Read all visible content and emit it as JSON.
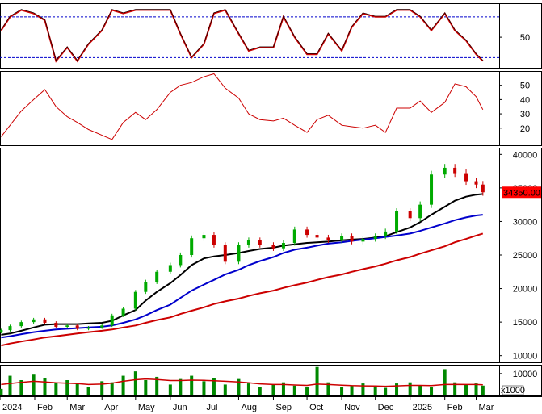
{
  "chart_data": [
    {
      "name": "stochastic-oscillator-panel",
      "type": "line",
      "y_ticks": [
        "50"
      ],
      "reference_lines": [
        20,
        80
      ],
      "line_color": "#cc0000",
      "signal_color": "#000000",
      "reference_color": "#0000cc",
      "x": [
        "2024-01-02",
        "2024-01-10",
        "2024-01-20",
        "2024-01-31",
        "2024-02-10",
        "2024-02-20",
        "2024-03-01",
        "2024-03-10",
        "2024-03-20",
        "2024-04-01",
        "2024-04-10",
        "2024-04-20",
        "2024-05-01",
        "2024-05-10",
        "2024-05-20",
        "2024-06-01",
        "2024-06-10",
        "2024-06-20",
        "2024-07-01",
        "2024-07-10",
        "2024-07-20",
        "2024-08-01",
        "2024-08-10",
        "2024-08-20",
        "2024-09-01",
        "2024-09-10",
        "2024-09-20",
        "2024-10-01",
        "2024-10-10",
        "2024-10-20",
        "2024-11-01",
        "2024-11-10",
        "2024-11-20",
        "2024-12-01",
        "2024-12-10",
        "2024-12-20",
        "2025-01-01",
        "2025-01-10",
        "2025-01-20",
        "2025-02-01",
        "2025-02-10",
        "2025-02-20",
        "2025-03-01",
        "2025-03-07"
      ],
      "values": [
        60,
        80,
        90,
        85,
        75,
        15,
        35,
        15,
        40,
        60,
        90,
        85,
        90,
        90,
        90,
        90,
        55,
        20,
        40,
        85,
        90,
        55,
        30,
        35,
        35,
        80,
        50,
        25,
        25,
        55,
        30,
        65,
        85,
        80,
        80,
        90,
        90,
        80,
        60,
        85,
        60,
        45,
        25,
        15
      ]
    },
    {
      "name": "rsi-panel",
      "type": "line",
      "y_ticks": [
        "50",
        "40",
        "30",
        "20"
      ],
      "line_color": "#cc0000",
      "x": [
        "2024-01-02",
        "2024-01-10",
        "2024-01-20",
        "2024-01-31",
        "2024-02-10",
        "2024-02-20",
        "2024-03-01",
        "2024-03-10",
        "2024-03-20",
        "2024-04-01",
        "2024-04-10",
        "2024-04-20",
        "2024-05-01",
        "2024-05-10",
        "2024-05-20",
        "2024-06-01",
        "2024-06-10",
        "2024-06-20",
        "2024-07-01",
        "2024-07-10",
        "2024-07-20",
        "2024-08-01",
        "2024-08-10",
        "2024-08-20",
        "2024-09-01",
        "2024-09-10",
        "2024-09-20",
        "2024-10-01",
        "2024-10-10",
        "2024-10-20",
        "2024-11-01",
        "2024-11-10",
        "2024-11-20",
        "2024-12-01",
        "2024-12-10",
        "2024-12-20",
        "2025-01-01",
        "2025-01-10",
        "2025-01-20",
        "2025-02-01",
        "2025-02-10",
        "2025-02-20",
        "2025-03-01",
        "2025-03-07"
      ],
      "values": [
        14,
        22,
        32,
        40,
        47,
        35,
        28,
        24,
        19,
        15,
        12,
        24,
        31,
        26,
        33,
        45,
        50,
        52,
        56,
        58,
        48,
        41,
        30,
        26,
        25,
        27,
        22,
        17,
        26,
        29,
        22,
        21,
        20,
        22,
        17,
        34,
        34,
        39,
        31,
        38,
        51,
        49,
        42,
        33
      ]
    },
    {
      "name": "price-panel",
      "type": "candlestick",
      "y_ticks": [
        "40000",
        "35000",
        "30000",
        "25000",
        "20000",
        "15000",
        "10000"
      ],
      "ylim": [
        9000,
        41000
      ],
      "last_price_label": "34350.00",
      "last_price_color": "#ff0000",
      "up_color": "#00aa00",
      "down_color": "#cc0000",
      "x": [
        "2024-01-02",
        "2024-01-10",
        "2024-01-20",
        "2024-01-31",
        "2024-02-10",
        "2024-02-20",
        "2024-03-01",
        "2024-03-10",
        "2024-03-20",
        "2024-04-01",
        "2024-04-10",
        "2024-04-20",
        "2024-05-01",
        "2024-05-10",
        "2024-05-20",
        "2024-06-01",
        "2024-06-10",
        "2024-06-20",
        "2024-07-01",
        "2024-07-10",
        "2024-07-20",
        "2024-08-01",
        "2024-08-10",
        "2024-08-20",
        "2024-09-01",
        "2024-09-10",
        "2024-09-20",
        "2024-10-01",
        "2024-10-10",
        "2024-10-20",
        "2024-11-01",
        "2024-11-10",
        "2024-11-20",
        "2024-12-01",
        "2024-12-10",
        "2024-12-20",
        "2025-01-01",
        "2025-01-10",
        "2025-01-20",
        "2025-02-01",
        "2025-02-10",
        "2025-02-20",
        "2025-03-01",
        "2025-03-07"
      ],
      "close": [
        13800,
        14400,
        15000,
        15400,
        14900,
        14300,
        14500,
        14000,
        14200,
        14500,
        16000,
        17000,
        19500,
        21000,
        22500,
        23500,
        25000,
        27500,
        28000,
        26500,
        24000,
        26500,
        27200,
        26500,
        26000,
        26800,
        28800,
        28000,
        27600,
        27200,
        27800,
        27000,
        27400,
        27800,
        28500,
        31500,
        30500,
        32500,
        37000,
        38000,
        37200,
        36000,
        35500,
        34350
      ],
      "series": [
        {
          "name": "MA20",
          "color": "#000000",
          "values": [
            13100,
            13300,
            13700,
            14200,
            14600,
            14700,
            14700,
            14700,
            14800,
            14900,
            15200,
            16000,
            16800,
            18200,
            19500,
            20800,
            22000,
            23500,
            24500,
            24800,
            25000,
            25300,
            25600,
            25900,
            26100,
            26400,
            26600,
            26800,
            26900,
            27000,
            27200,
            27300,
            27400,
            27600,
            27800,
            28400,
            29100,
            29900,
            31000,
            32200,
            33100,
            33700,
            34000,
            34100
          ]
        },
        {
          "name": "MA50",
          "color": "#0000cc",
          "values": [
            12700,
            12900,
            13200,
            13500,
            13700,
            13900,
            14000,
            14100,
            14200,
            14300,
            14500,
            14900,
            15400,
            16000,
            16800,
            17600,
            18600,
            19700,
            20600,
            21300,
            22100,
            22800,
            23500,
            24100,
            24700,
            25300,
            25800,
            26100,
            26400,
            26700,
            26900,
            27100,
            27300,
            27500,
            27700,
            27900,
            28200,
            28600,
            29100,
            29700,
            30200,
            30600,
            30900,
            31000
          ]
        },
        {
          "name": "MA200",
          "color": "#cc0000",
          "values": [
            11500,
            11800,
            12100,
            12400,
            12700,
            12900,
            13100,
            13300,
            13500,
            13700,
            13900,
            14200,
            14500,
            14900,
            15300,
            15700,
            16200,
            16700,
            17200,
            17700,
            18100,
            18500,
            18900,
            19300,
            19700,
            20100,
            20500,
            20900,
            21300,
            21700,
            22100,
            22500,
            22900,
            23300,
            23700,
            24200,
            24700,
            25200,
            25700,
            26300,
            26900,
            27400,
            27900,
            28200
          ]
        }
      ]
    },
    {
      "name": "volume-panel",
      "type": "bar",
      "y_ticks": [
        "10000"
      ],
      "unit_label": "x1000",
      "bar_color": "#008800",
      "ma_color": "#cc0000",
      "x": [
        "2024-01-02",
        "2024-01-10",
        "2024-01-20",
        "2024-01-31",
        "2024-02-10",
        "2024-02-20",
        "2024-03-01",
        "2024-03-10",
        "2024-03-20",
        "2024-04-01",
        "2024-04-10",
        "2024-04-20",
        "2024-05-01",
        "2024-05-10",
        "2024-05-20",
        "2024-06-01",
        "2024-06-10",
        "2024-06-20",
        "2024-07-01",
        "2024-07-10",
        "2024-07-20",
        "2024-08-01",
        "2024-08-10",
        "2024-08-20",
        "2024-09-01",
        "2024-09-10",
        "2024-09-20",
        "2024-10-01",
        "2024-10-10",
        "2024-10-20",
        "2024-11-01",
        "2024-11-10",
        "2024-11-20",
        "2024-12-01",
        "2024-12-10",
        "2024-12-20",
        "2025-01-01",
        "2025-01-10",
        "2025-01-20",
        "2025-02-01",
        "2025-02-10",
        "2025-02-20",
        "2025-03-01",
        "2025-03-07"
      ],
      "values": [
        3000,
        9000,
        7000,
        9500,
        8000,
        6000,
        7000,
        5500,
        4000,
        6500,
        6000,
        9000,
        11000,
        7000,
        8500,
        5000,
        7500,
        9000,
        6500,
        8000,
        5000,
        7500,
        5500,
        4000,
        5000,
        6000,
        4500,
        4000,
        13000,
        6000,
        4000,
        4500,
        5500,
        4000,
        3500,
        5500,
        6000,
        4500,
        4000,
        12000,
        6000,
        5000,
        5500,
        4500
      ],
      "ma_values": [
        5000,
        5500,
        6000,
        6500,
        6200,
        5800,
        5600,
        5400,
        5000,
        5200,
        5600,
        6500,
        7200,
        7500,
        7300,
        6800,
        6800,
        7000,
        6900,
        6700,
        6500,
        6200,
        5800,
        5300,
        5000,
        5000,
        4800,
        4600,
        5200,
        5000,
        4700,
        4500,
        4400,
        4300,
        4200,
        4400,
        4600,
        4600,
        4500,
        5000,
        5100,
        5000,
        5000,
        4900
      ]
    }
  ],
  "x_axis": {
    "months": [
      {
        "label": "2024",
        "date": "2024-01-01"
      },
      {
        "label": "Feb",
        "date": "2024-02-01"
      },
      {
        "label": "Mar",
        "date": "2024-03-01"
      },
      {
        "label": "Apr",
        "date": "2024-04-01"
      },
      {
        "label": "May",
        "date": "2024-05-01"
      },
      {
        "label": "Jun",
        "date": "2024-06-01"
      },
      {
        "label": "Jul",
        "date": "2024-07-01"
      },
      {
        "label": "Aug",
        "date": "2024-08-01"
      },
      {
        "label": "Sep",
        "date": "2024-09-01"
      },
      {
        "label": "Oct",
        "date": "2024-10-01"
      },
      {
        "label": "Nov",
        "date": "2024-11-01"
      },
      {
        "label": "Dec",
        "date": "2024-12-01"
      },
      {
        "label": "2025",
        "date": "2025-01-01"
      },
      {
        "label": "Feb",
        "date": "2025-02-01"
      },
      {
        "label": "Mar",
        "date": "2025-03-01"
      }
    ]
  }
}
